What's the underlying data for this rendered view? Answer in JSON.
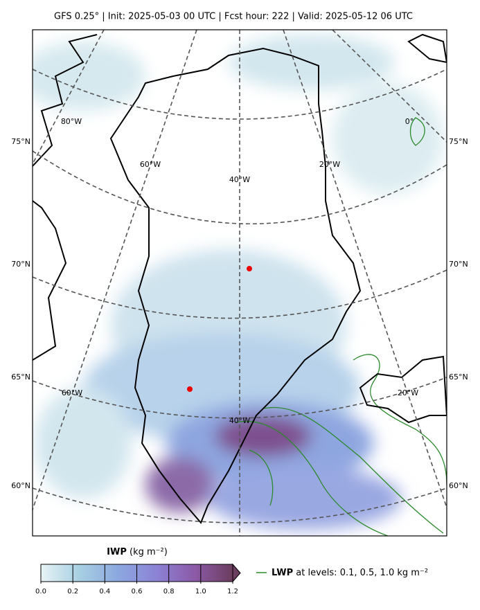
{
  "header": {
    "title": "GFS 0.25° | Init: 2025-05-03 00 UTC | Fcst hour: 222 | Valid: 2025-05-12 06 UTC"
  },
  "map": {
    "lat_labels_left": [
      "75°N",
      "70°N",
      "65°N",
      "60°N"
    ],
    "lat_labels_right": [
      "75°N",
      "70°N",
      "65°N",
      "60°N"
    ],
    "lon_labels": [
      "80°W",
      "0°",
      "60°W",
      "20°W",
      "40°W",
      "60°W",
      "20°W",
      "40°W"
    ]
  },
  "colorbar": {
    "label": "IWP",
    "units": "(kg m⁻²)",
    "lim": [
      0,
      1.2
    ],
    "ticks": [
      {
        "value": 0,
        "label": "0.0"
      },
      0.2,
      0.4,
      0.6,
      0.8,
      {
        "value": 1,
        "label": "1.0"
      },
      1.2
    ]
  },
  "legend": {
    "label": "LWP",
    "text": "at levels: 0.1, 0.5, 1.0  kg m⁻²"
  }
}
